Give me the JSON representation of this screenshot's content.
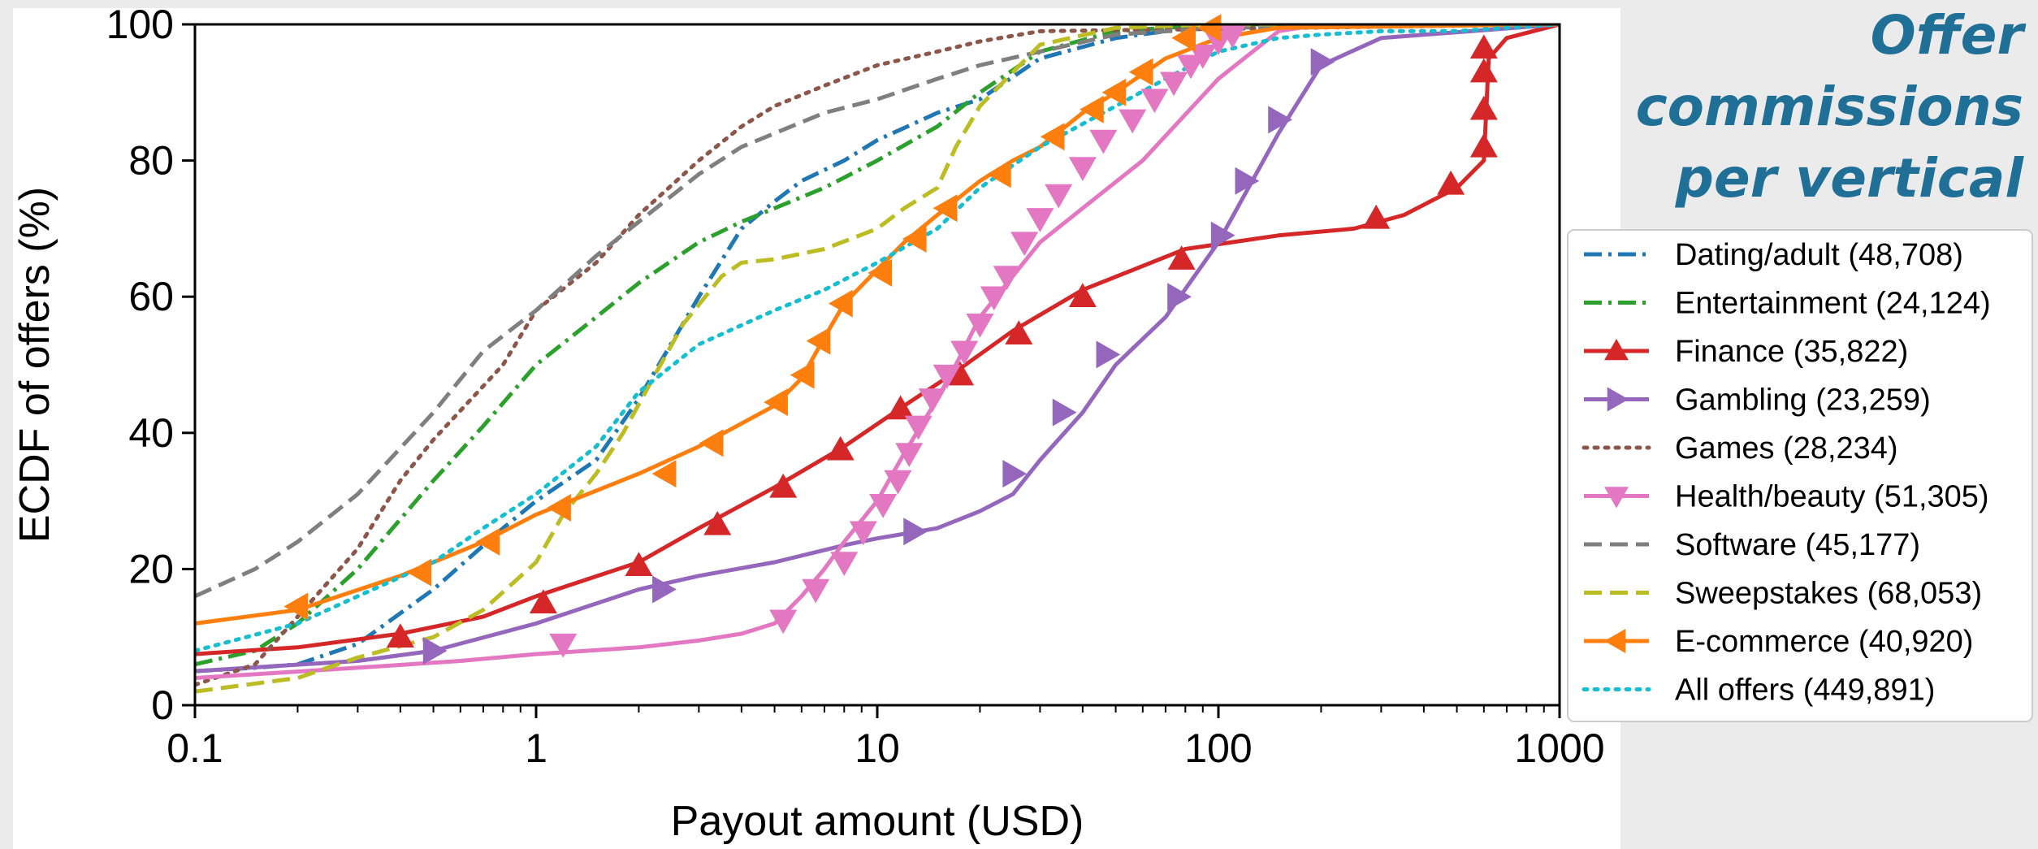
{
  "title_lines": [
    "Offer",
    "commissions",
    "per vertical"
  ],
  "chart_data": {
    "type": "line",
    "x_scale": "log",
    "xlim": [
      0.1,
      1000
    ],
    "ylim": [
      0,
      100
    ],
    "xlabel": "Payout amount (USD)",
    "ylabel": "ECDF of offers (%)",
    "x_ticks": [
      0.1,
      1,
      10,
      100,
      1000
    ],
    "x_tick_labels": [
      "0.1",
      "1",
      "10",
      "100",
      "1000"
    ],
    "y_ticks": [
      0,
      20,
      40,
      60,
      80,
      100
    ],
    "y_tick_labels": [
      "0",
      "20",
      "40",
      "60",
      "80",
      "100"
    ],
    "grid": false,
    "legend_position": "right",
    "series": [
      {
        "name": "Dating/adult (48,708)",
        "color": "#1f77b4",
        "dash": "dashdot",
        "marker": "none",
        "x": [
          0.1,
          0.15,
          0.2,
          0.3,
          0.5,
          0.8,
          1,
          1.5,
          2,
          3,
          4,
          5,
          6,
          8,
          10,
          15,
          20,
          30,
          50,
          70,
          100,
          1000
        ],
        "y": [
          5,
          5.5,
          6,
          9,
          17,
          26,
          30,
          36,
          45,
          60,
          70,
          74,
          77,
          80,
          83,
          87,
          89,
          95,
          98,
          99,
          100,
          100
        ]
      },
      {
        "name": "Entertainment (24,124)",
        "color": "#2ca02c",
        "dash": "dashdot",
        "marker": "none",
        "x": [
          0.1,
          0.15,
          0.2,
          0.3,
          0.5,
          0.7,
          1,
          1.5,
          2,
          3,
          4,
          5,
          7,
          10,
          15,
          20,
          30,
          50,
          100,
          1000
        ],
        "y": [
          6,
          8,
          12,
          20,
          33,
          41,
          50,
          57,
          62,
          68,
          71,
          73,
          76,
          80,
          85,
          90,
          96,
          99,
          100,
          100
        ]
      },
      {
        "name": "Finance (35,822)",
        "color": "#d62728",
        "dash": "solid",
        "marker": "triangle-up",
        "x": [
          0.1,
          0.2,
          0.4,
          0.7,
          1,
          2,
          3,
          5,
          8,
          12,
          17,
          25,
          40,
          80,
          150,
          250,
          350,
          500,
          600,
          620,
          700,
          1000
        ],
        "y": [
          7.5,
          8.5,
          10.5,
          13,
          16,
          21,
          26,
          32,
          38,
          44,
          49,
          55,
          61,
          67,
          69,
          70,
          72,
          76,
          80,
          95,
          98,
          100
        ],
        "marker_x": [
          0.4,
          1.05,
          2,
          3.4,
          5.3,
          7.8,
          11.7,
          17.5,
          26,
          40,
          78,
          290,
          480,
          600,
          600,
          600,
          600
        ],
        "marker_y": [
          10,
          15,
          20.5,
          26.5,
          32,
          37.5,
          43.5,
          48.5,
          54.5,
          60,
          65.5,
          71.5,
          76.5,
          82,
          87.5,
          93,
          96.5
        ]
      },
      {
        "name": "Gambling (23,259)",
        "color": "#9467bd",
        "dash": "solid",
        "marker": "triangle-right",
        "x": [
          0.1,
          0.3,
          0.5,
          1,
          2,
          3,
          5,
          8,
          10,
          15,
          20,
          25,
          30,
          40,
          50,
          70,
          100,
          150,
          200,
          300,
          1000
        ],
        "y": [
          5,
          6.5,
          8,
          12,
          17,
          19,
          21,
          23.5,
          24.5,
          26,
          28.5,
          31,
          36,
          43,
          50,
          57,
          68,
          84,
          94,
          98,
          100
        ],
        "marker_x": [
          0.5,
          2.35,
          12.8,
          25,
          35,
          47,
          76,
          102,
          120,
          150,
          200
        ],
        "marker_y": [
          8,
          17,
          25.5,
          34,
          43,
          51.5,
          60,
          69,
          77,
          86,
          94.5
        ]
      },
      {
        "name": "Games (28,234)",
        "color": "#8c564b",
        "dash": "dotted",
        "marker": "none",
        "x": [
          0.1,
          0.15,
          0.2,
          0.3,
          0.4,
          0.5,
          0.8,
          1,
          1.5,
          2,
          3,
          4,
          5,
          7,
          10,
          15,
          20,
          30,
          1000
        ],
        "y": [
          3,
          6,
          13,
          23,
          33,
          39,
          50,
          58,
          65,
          72,
          80,
          85,
          88,
          91,
          94,
          96,
          97.5,
          99,
          100
        ],
        "marker_x": [],
        "marker_y": []
      },
      {
        "name": "Health/beauty (51,305)",
        "color": "#e377c2",
        "dash": "solid",
        "marker": "triangle-down",
        "x": [
          0.1,
          0.3,
          0.6,
          1,
          2,
          3,
          4,
          5,
          6,
          7,
          8,
          10,
          12,
          15,
          17,
          20,
          30,
          40,
          60,
          100,
          150,
          200,
          1000
        ],
        "y": [
          4,
          5.5,
          6.5,
          7.5,
          8.5,
          9.5,
          10.5,
          12,
          16,
          20,
          24,
          30,
          37,
          45,
          50,
          57,
          68,
          73,
          80,
          92,
          99,
          100,
          100
        ],
        "marker_x": [
          1.2,
          5.3,
          6.6,
          8,
          9.1,
          10.4,
          11.5,
          12.4,
          13.2,
          14.5,
          16,
          18,
          20,
          22,
          24,
          27,
          30,
          34,
          40,
          46,
          56,
          65,
          74,
          83,
          90,
          100,
          110
        ],
        "marker_y": [
          9,
          12.5,
          17,
          21,
          25.5,
          29.5,
          33,
          37,
          41,
          45,
          48.5,
          52,
          56,
          60,
          63,
          68,
          71.5,
          75,
          79,
          83,
          86,
          89,
          91.5,
          94,
          95.5,
          97.5,
          98.5
        ]
      },
      {
        "name": "Software (45,177)",
        "color": "#7f7f7f",
        "dash": "dashed",
        "marker": "none",
        "x": [
          0.1,
          0.15,
          0.2,
          0.3,
          0.5,
          0.7,
          1,
          1.5,
          2,
          3,
          4,
          5,
          7,
          10,
          15,
          20,
          30,
          50,
          100,
          1000
        ],
        "y": [
          16,
          20,
          24,
          31,
          43,
          52,
          58,
          66,
          71,
          78,
          82,
          84,
          87,
          89,
          92,
          94,
          96,
          98.5,
          99.5,
          100
        ],
        "marker_x": [],
        "marker_y": []
      },
      {
        "name": "Sweepstakes (68,053)",
        "color": "#bcbd22",
        "dash": "dashed",
        "marker": "none",
        "x": [
          0.1,
          0.2,
          0.3,
          0.5,
          0.7,
          1,
          1.2,
          1.5,
          1.8,
          2.2,
          2.7,
          3.5,
          4,
          5,
          7,
          10,
          12,
          15,
          17,
          20,
          25,
          30,
          50,
          100,
          1000
        ],
        "y": [
          2,
          4,
          7,
          10,
          14,
          21,
          28,
          34,
          40,
          48,
          56,
          63,
          65,
          65.5,
          67,
          70,
          73,
          76,
          82,
          88,
          93,
          97,
          99.5,
          100,
          100
        ],
        "marker_x": [],
        "marker_y": []
      },
      {
        "name": "E-commerce (40,920)",
        "color": "#ff7f0e",
        "dash": "solid",
        "marker": "triangle-left",
        "x": [
          0.1,
          0.2,
          0.4,
          0.7,
          1,
          2,
          3,
          5,
          6,
          7,
          8,
          10,
          12,
          15,
          20,
          25,
          30,
          40,
          50,
          70,
          100,
          150,
          1000
        ],
        "y": [
          12,
          14,
          19,
          24,
          28,
          34,
          38,
          44,
          48,
          54,
          59,
          64,
          68,
          72,
          77,
          80,
          82,
          87,
          90,
          95,
          98,
          99.5,
          100
        ],
        "marker_x": [
          0.2,
          0.46,
          0.73,
          1.18,
          2.4,
          3.3,
          5.1,
          6.1,
          6.8,
          7.9,
          10.3,
          13,
          16,
          23,
          33,
          43,
          50,
          60,
          80,
          95
        ],
        "marker_y": [
          14.5,
          19.5,
          24,
          29,
          34,
          38.5,
          44.5,
          48.5,
          53.5,
          59,
          63.5,
          68.5,
          73,
          78,
          83.5,
          87.5,
          90,
          93,
          98,
          99.5
        ]
      },
      {
        "name": "All offers (449,891)",
        "color": "#17becf",
        "dash": "dotted",
        "marker": "none",
        "x": [
          0.1,
          0.2,
          0.3,
          0.5,
          0.7,
          1,
          1.5,
          2,
          3,
          5,
          7,
          10,
          15,
          20,
          30,
          50,
          70,
          100,
          150,
          200,
          300,
          500,
          700,
          1000
        ],
        "y": [
          8,
          12,
          16,
          21,
          26,
          31,
          38,
          46,
          53,
          58,
          61,
          65,
          70,
          76,
          82,
          88,
          92,
          96,
          98,
          98.5,
          99,
          99,
          99.5,
          100
        ],
        "marker_x": [],
        "marker_y": []
      }
    ]
  }
}
